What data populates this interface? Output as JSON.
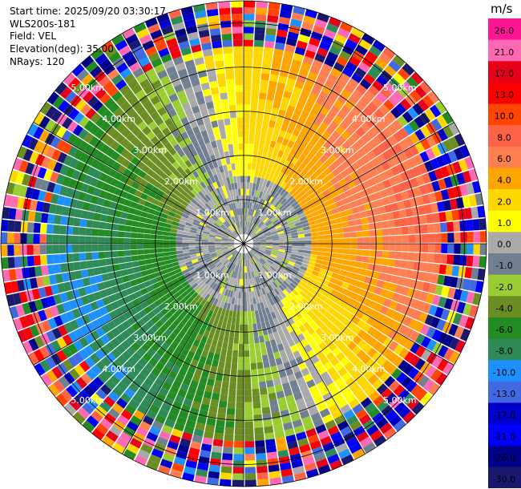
{
  "header": {
    "start_time": "Start time: 2025/09/20 03:30:17",
    "instrument": "WLS200s-181",
    "field": "Field: VEL",
    "elevation": "Elevation(deg): 35.00",
    "nrays": "NRays: 120"
  },
  "colorbar": {
    "unit": "m/s",
    "labels": [
      "26.0",
      "21.0",
      "17.0",
      "13.0",
      "10.0",
      "8.0",
      "6.0",
      "4.0",
      "2.0",
      "1.0",
      "0.0",
      "-1.0",
      "-2.0",
      "-4.0",
      "-6.0",
      "-8.0",
      "-10.0",
      "-13.0",
      "-17.0",
      "-21.0",
      "-26.0",
      "-30.0"
    ],
    "colors": [
      "#ff1493",
      "#ff69b4",
      "#e6001a",
      "#ff0000",
      "#ff4500",
      "#ff6347",
      "#ff7f50",
      "#ffa500",
      "#ffd700",
      "#ffff00",
      "#a9a9a9",
      "#708090",
      "#9acd32",
      "#6b8e23",
      "#228b22",
      "#2e8b57",
      "#1e90ff",
      "#4169e1",
      "#0000cd",
      "#0000ff",
      "#00008b",
      "#191970"
    ]
  },
  "chart_data": {
    "type": "ppi",
    "title": "Start time: 2025/09/20 03:30:17",
    "field": "VEL",
    "instrument": "WLS200s-181",
    "elevation_deg": 35.0,
    "nrays": 120,
    "range_max_km": 5.5,
    "range_ring_labels": [
      "1.00km",
      "2.00km",
      "3.00km",
      "4.00km",
      "5.00km"
    ],
    "value_range": [
      -30.0,
      26.0
    ],
    "velocity_pattern": "approaching (-) west/south-west, receding (+) east/north-east, noisy beyond ~4.5 km"
  }
}
